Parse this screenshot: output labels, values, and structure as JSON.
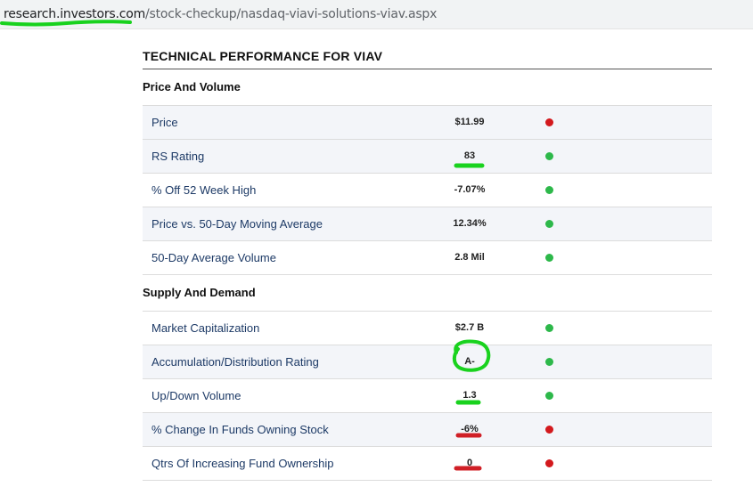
{
  "browser": {
    "url_host": "research.investors.com",
    "url_path": "/stock-checkup/nasdaq-viavi-solutions-viav.aspx"
  },
  "panel": {
    "title": "TECHNICAL PERFORMANCE FOR VIAV",
    "sections": [
      {
        "title": "Price And Volume",
        "rows": [
          {
            "label": "Price",
            "value": "$11.99",
            "status": "red"
          },
          {
            "label": "RS Rating",
            "value": "83",
            "status": "green"
          },
          {
            "label": "% Off 52 Week High",
            "value": "-7.07%",
            "status": "green"
          },
          {
            "label": "Price vs. 50-Day Moving Average",
            "value": "12.34%",
            "status": "green"
          },
          {
            "label": "50-Day Average Volume",
            "value": "2.8 Mil",
            "status": "green"
          }
        ]
      },
      {
        "title": "Supply And Demand",
        "rows": [
          {
            "label": "Market Capitalization",
            "value": "$2.7 B",
            "status": "green"
          },
          {
            "label": "Accumulation/Distribution Rating",
            "value": "A-",
            "status": "green"
          },
          {
            "label": "Up/Down Volume",
            "value": "1.3",
            "status": "green"
          },
          {
            "label": "% Change In Funds Owning Stock",
            "value": "-6%",
            "status": "red"
          },
          {
            "label": "Qtrs Of Increasing Fund Ownership",
            "value": "0",
            "status": "red"
          }
        ]
      }
    ]
  },
  "colors": {
    "good": "#2db84a",
    "bad": "#d3191d",
    "annotation_green": "#19d21e",
    "annotation_red": "#d01f26"
  }
}
